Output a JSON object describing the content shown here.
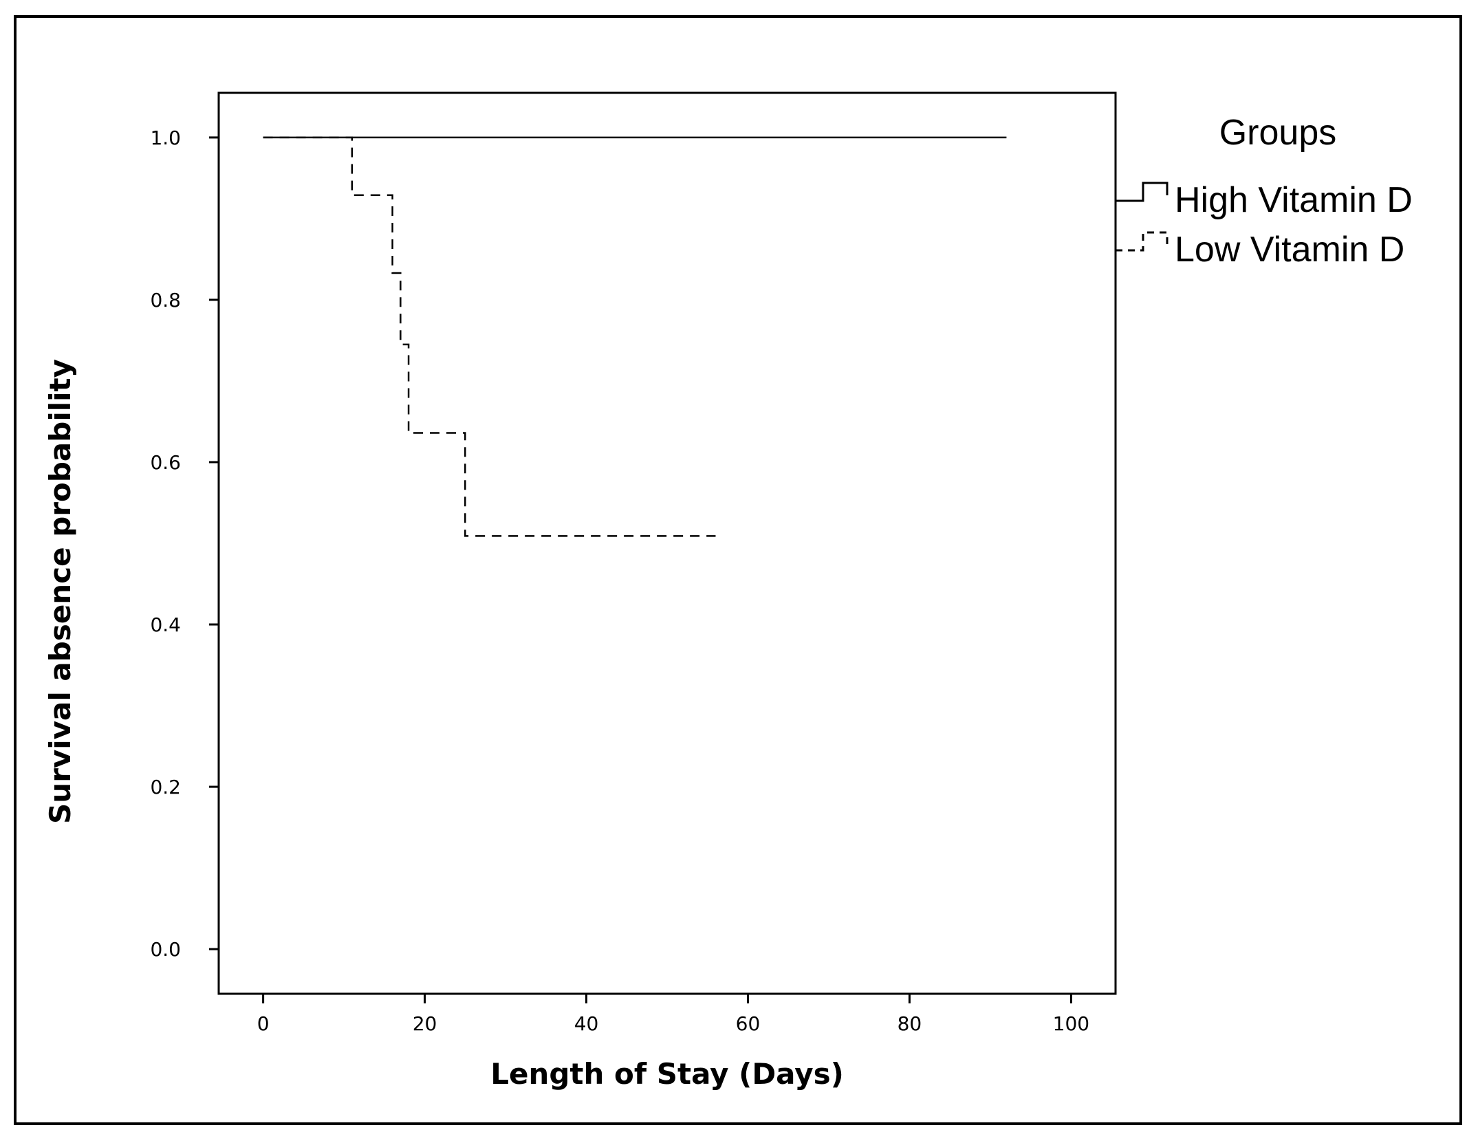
{
  "chart_data": {
    "type": "line",
    "subtype": "kaplan-meier step",
    "xlabel": "Length of Stay (Days)",
    "ylabel": "Survival absence probability",
    "xlim": [
      -5.5,
      105.5
    ],
    "ylim": [
      -0.055,
      1.055
    ],
    "xticks": [
      0,
      20,
      40,
      60,
      80,
      100
    ],
    "yticks": [
      0.0,
      0.2,
      0.4,
      0.6,
      0.8,
      1.0
    ],
    "xtick_labels": [
      "0",
      "20",
      "40",
      "60",
      "80",
      "100"
    ],
    "ytick_labels": [
      "0.0",
      "0.2",
      "0.4",
      "0.6",
      "0.8",
      "1.0"
    ],
    "grid": false,
    "legend": {
      "title": "Groups",
      "position": "right-outside-top",
      "entries": [
        "High Vitamin D",
        "Low Vitamin D"
      ]
    },
    "series": [
      {
        "name": "High Vitamin D",
        "style": "solid",
        "color": "#000000",
        "steps": [
          [
            0,
            1.0
          ],
          [
            92,
            1.0
          ]
        ]
      },
      {
        "name": "Low Vitamin D",
        "style": "dashed",
        "color": "#000000",
        "steps": [
          [
            0,
            1.0
          ],
          [
            11,
            0.929
          ],
          [
            16,
            0.833
          ],
          [
            17,
            0.745
          ],
          [
            18,
            0.636
          ],
          [
            25,
            0.509
          ],
          [
            56,
            0.509
          ]
        ]
      }
    ]
  }
}
